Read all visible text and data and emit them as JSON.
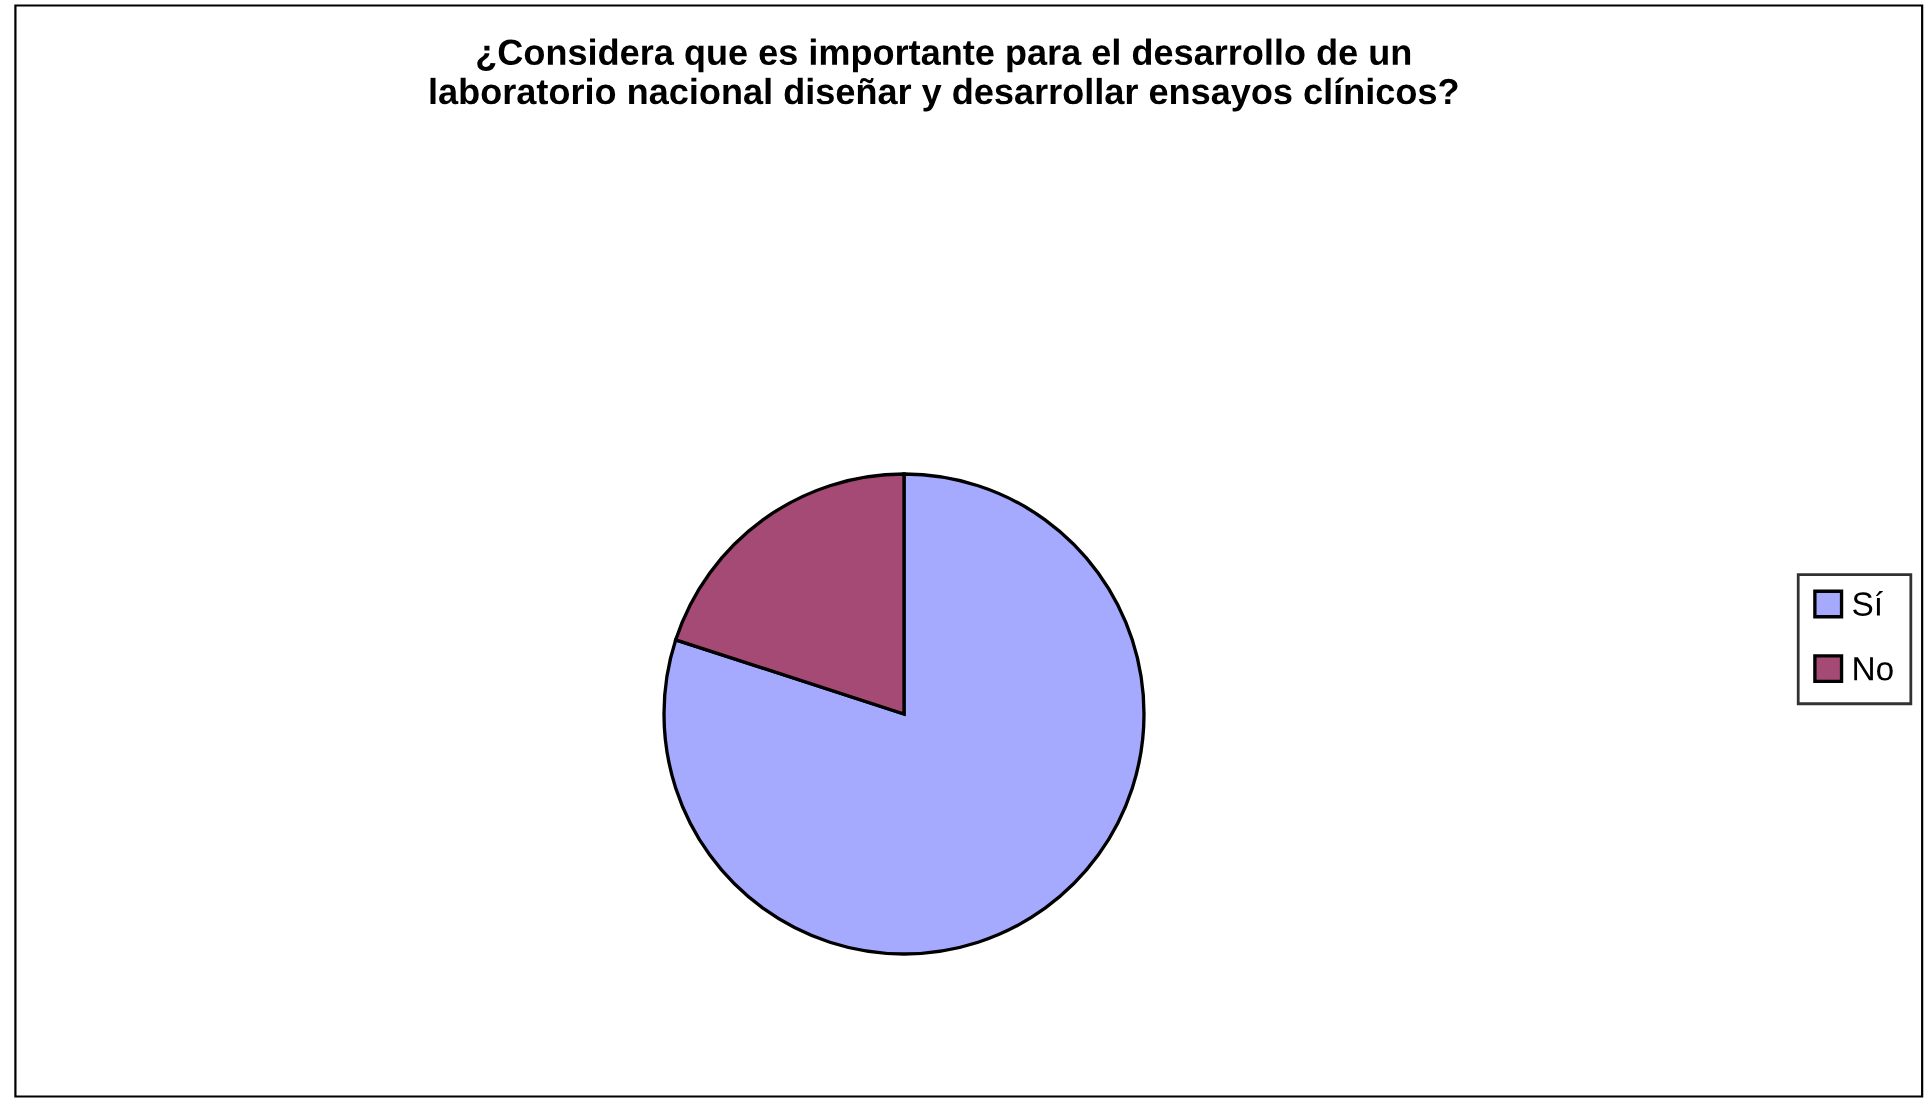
{
  "chart_data": {
    "type": "pie",
    "title": "¿Considera que es importante para el desarrollo de un\nlaboratorio nacional diseñar y desarrollar ensayos clínicos?",
    "categories": [
      "Sí",
      "No"
    ],
    "values": [
      80,
      20
    ],
    "colors": [
      "#a6aaff",
      "#a54a74"
    ],
    "legend": "right"
  }
}
